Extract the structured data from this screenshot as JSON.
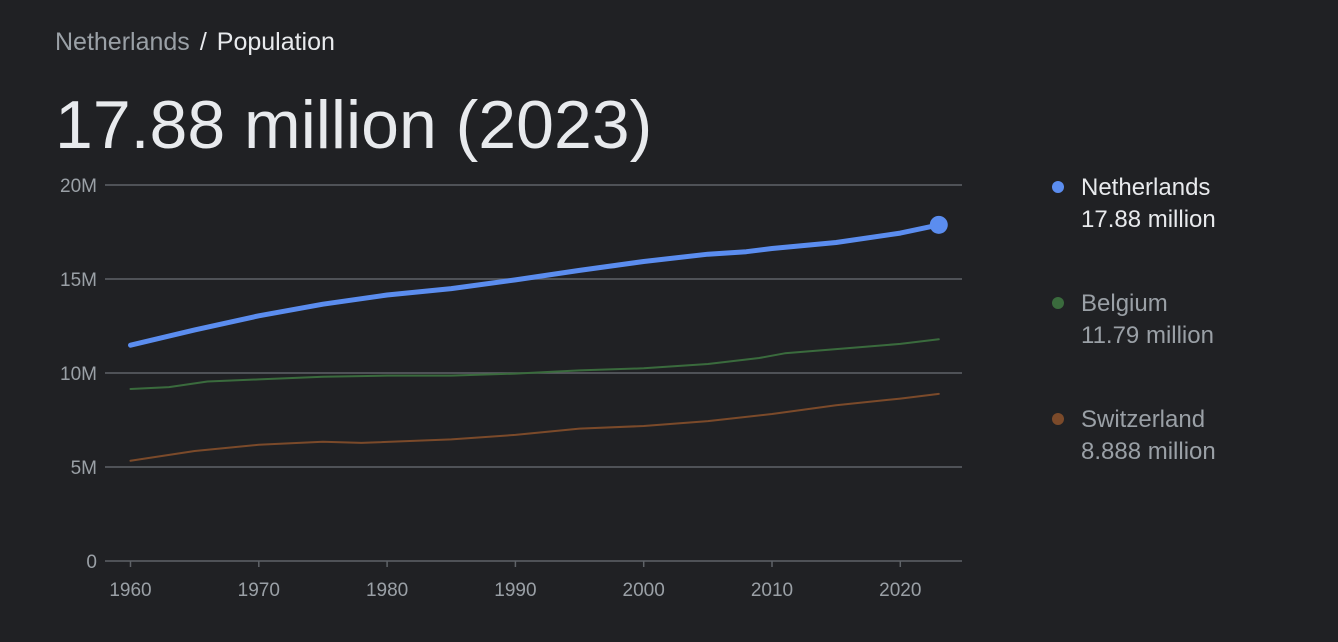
{
  "breadcrumb": {
    "parent": "Netherlands",
    "separator": "/",
    "current": "Population"
  },
  "headline": "17.88 million (2023)",
  "colors": {
    "background": "#202124",
    "text_primary": "#e8eaed",
    "text_secondary": "#9aa0a6",
    "grid": "#5f6368",
    "netherlands": "#5b8def",
    "belgium": "#3a6b3d",
    "switzerland": "#7b4a2a"
  },
  "legend": [
    {
      "name": "Netherlands",
      "value": "17.88 million",
      "color": "#5b8def",
      "active": true
    },
    {
      "name": "Belgium",
      "value": "11.79 million",
      "color": "#3a6b3d",
      "active": false
    },
    {
      "name": "Switzerland",
      "value": "8.888 million",
      "color": "#7b4a2a",
      "active": false
    }
  ],
  "chart_data": {
    "type": "line",
    "title": "",
    "xlabel": "",
    "ylabel": "",
    "xlim": [
      1960,
      2023
    ],
    "ylim": [
      0,
      20000000
    ],
    "x_ticks": [
      1960,
      1970,
      1980,
      1990,
      2000,
      2010,
      2020
    ],
    "x_tick_labels": [
      "1960",
      "1970",
      "1980",
      "1990",
      "2000",
      "2010",
      "2020"
    ],
    "y_ticks": [
      0,
      5000000,
      10000000,
      15000000,
      20000000
    ],
    "y_tick_labels": [
      "0",
      "5M",
      "10M",
      "15M",
      "20M"
    ],
    "grid": true,
    "legend_position": "right",
    "series": [
      {
        "name": "Netherlands",
        "color": "#5b8def",
        "emphasized": true,
        "end_marker": true,
        "points": [
          [
            1960,
            11.48
          ],
          [
            1965,
            12.29
          ],
          [
            1970,
            13.04
          ],
          [
            1975,
            13.66
          ],
          [
            1980,
            14.15
          ],
          [
            1985,
            14.49
          ],
          [
            1990,
            14.95
          ],
          [
            1995,
            15.46
          ],
          [
            2000,
            15.93
          ],
          [
            2005,
            16.32
          ],
          [
            2008,
            16.45
          ],
          [
            2010,
            16.62
          ],
          [
            2015,
            16.94
          ],
          [
            2020,
            17.44
          ],
          [
            2023,
            17.88
          ]
        ]
      },
      {
        "name": "Belgium",
        "color": "#3a6b3d",
        "emphasized": false,
        "end_marker": false,
        "points": [
          [
            1960,
            9.15
          ],
          [
            1963,
            9.25
          ],
          [
            1966,
            9.55
          ],
          [
            1970,
            9.66
          ],
          [
            1975,
            9.8
          ],
          [
            1980,
            9.86
          ],
          [
            1985,
            9.86
          ],
          [
            1990,
            9.97
          ],
          [
            1995,
            10.14
          ],
          [
            2000,
            10.25
          ],
          [
            2005,
            10.48
          ],
          [
            2009,
            10.8
          ],
          [
            2011,
            11.05
          ],
          [
            2015,
            11.27
          ],
          [
            2020,
            11.55
          ],
          [
            2023,
            11.79
          ]
        ]
      },
      {
        "name": "Switzerland",
        "color": "#7b4a2a",
        "emphasized": false,
        "end_marker": false,
        "points": [
          [
            1960,
            5.33
          ],
          [
            1965,
            5.85
          ],
          [
            1970,
            6.18
          ],
          [
            1975,
            6.34
          ],
          [
            1978,
            6.28
          ],
          [
            1985,
            6.47
          ],
          [
            1990,
            6.71
          ],
          [
            1995,
            7.04
          ],
          [
            2000,
            7.18
          ],
          [
            2005,
            7.44
          ],
          [
            2010,
            7.82
          ],
          [
            2015,
            8.28
          ],
          [
            2020,
            8.64
          ],
          [
            2023,
            8.888
          ]
        ]
      }
    ]
  }
}
